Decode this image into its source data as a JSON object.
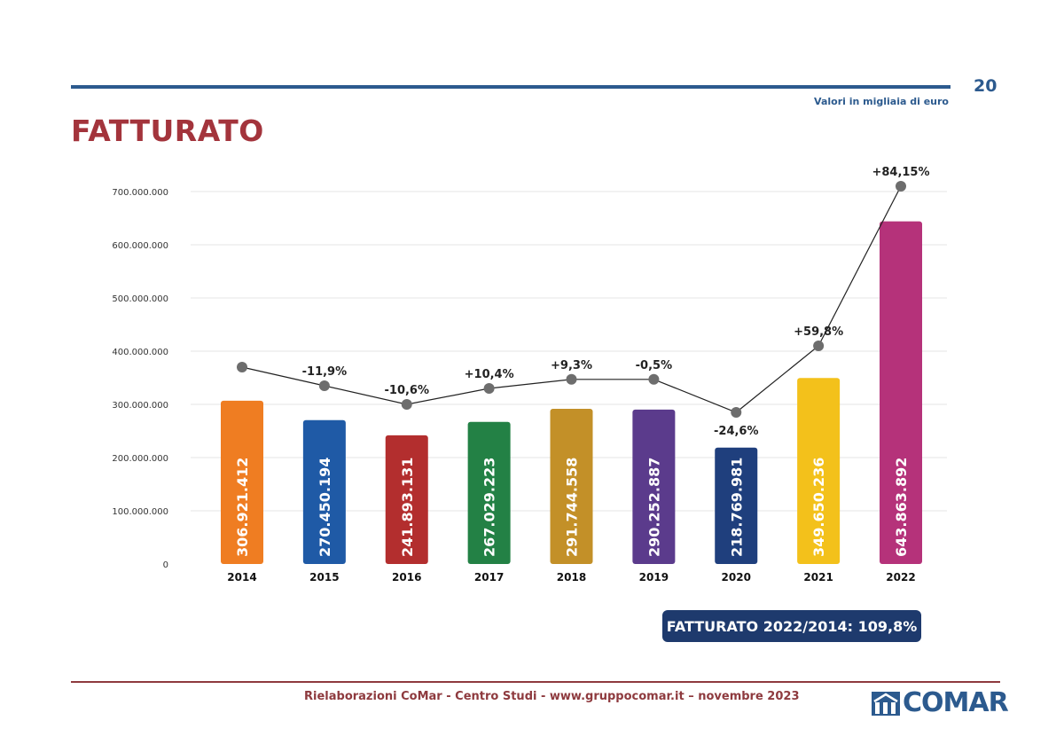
{
  "header": {
    "page_number": "20",
    "units_note": "Valori in migliaia di euro",
    "title": "FATTURATO"
  },
  "summary": "FATTURATO 2022/2014: 109,8%",
  "footer": {
    "text": "Rielaborazioni CoMar - Centro Studi - www.gruppocomar.it – novembre 2023",
    "logo_text": "COMAR"
  },
  "chart_data": {
    "type": "bar",
    "title": "FATTURATO",
    "categories": [
      "2014",
      "2015",
      "2016",
      "2017",
      "2018",
      "2019",
      "2020",
      "2021",
      "2022"
    ],
    "values": [
      306921412,
      270450194,
      241893131,
      267029223,
      291744558,
      290252887,
      218769981,
      349650236,
      643863892
    ],
    "value_labels": [
      "306.921.412",
      "270.450.194",
      "241.893.131",
      "267.029.223",
      "291.744.558",
      "290.252.887",
      "218.769.981",
      "349.650.236",
      "643.863.892"
    ],
    "bar_colors": [
      "#ef7d22",
      "#1f5aa6",
      "#b32e2e",
      "#238145",
      "#c39028",
      "#5b3b8c",
      "#1f3f7d",
      "#f3c11b",
      "#b5327a"
    ],
    "yticks": [
      "0",
      "100.000.000",
      "200.000.000",
      "300.000.000",
      "400.000.000",
      "500.000.000",
      "600.000.000",
      "700.000.000"
    ],
    "ylim": [
      0,
      700000000
    ],
    "growth_line": {
      "values": [
        370000000,
        335000000,
        300000000,
        330000000,
        347000000,
        347000000,
        285000000,
        410000000,
        710000000
      ],
      "labels": [
        "",
        "-11,9%",
        "-10,6%",
        "+10,4%",
        "+9,3%",
        "-0,5%",
        "-24,6%",
        "+59,8%",
        "+84,15%"
      ],
      "label_positions": [
        "",
        "above",
        "above",
        "above",
        "above",
        "above",
        "below",
        "above",
        "above"
      ]
    }
  }
}
